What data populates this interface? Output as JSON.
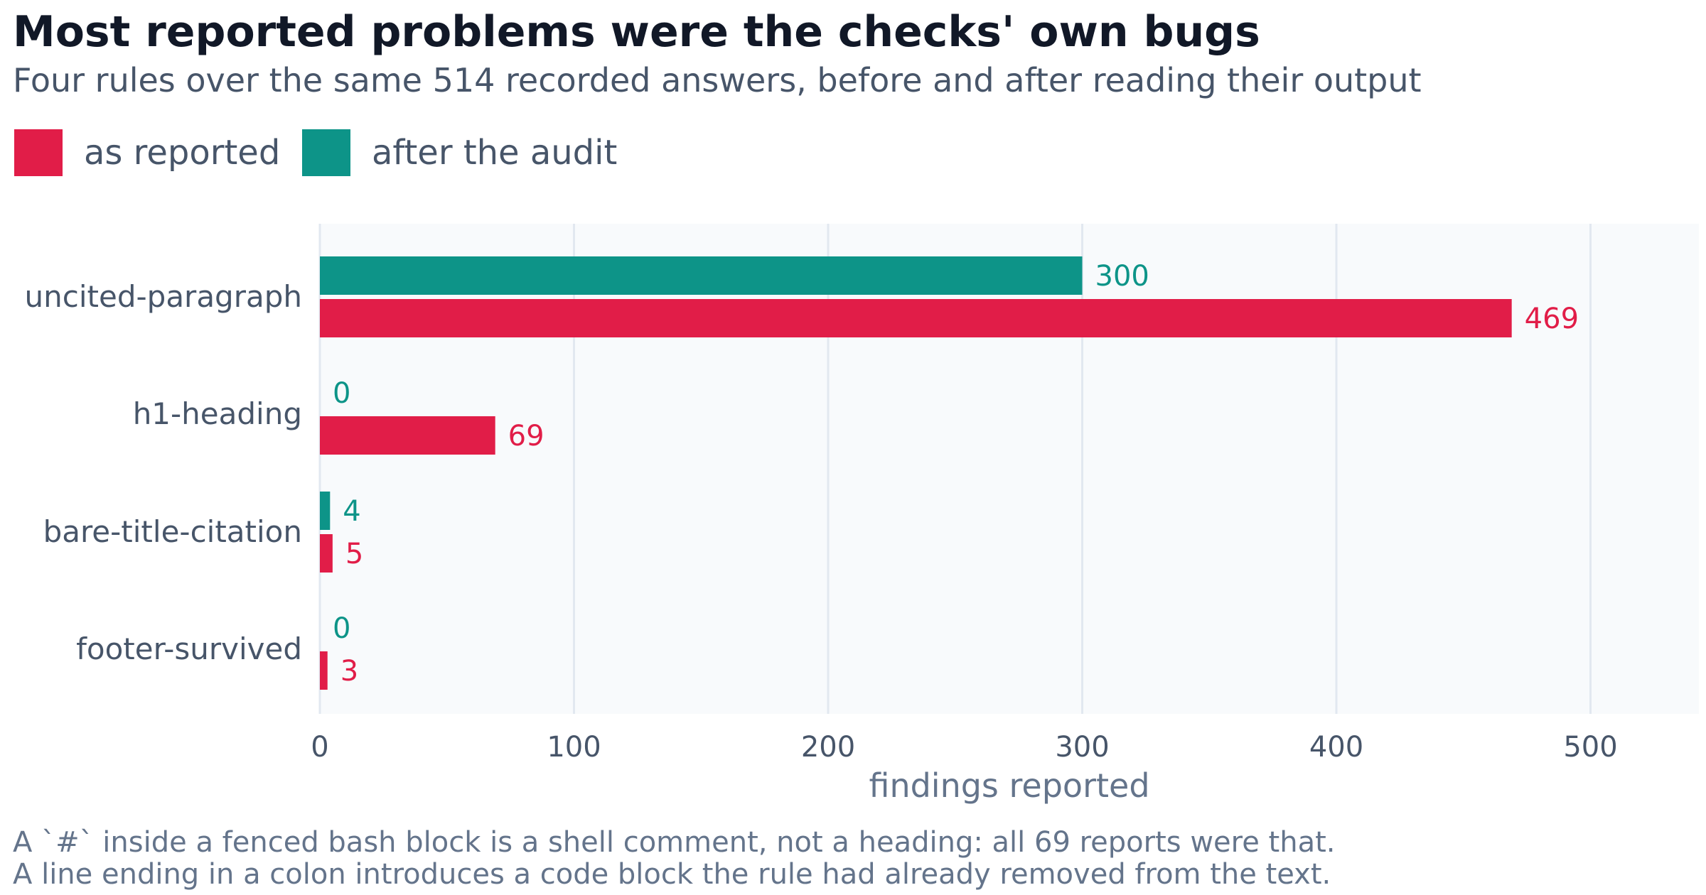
{
  "title": "Most reported problems were the checks' own bugs",
  "subtitle": "Four rules over the same 514 recorded answers, before and after reading their output",
  "footnotes": [
    "A `#` inside a fenced bash block is a shell comment, not a heading: all 69 reports were that.",
    "A line ending in a colon introduces a code block the rule had already removed from the text."
  ],
  "chart_data": {
    "type": "bar",
    "orientation": "horizontal",
    "categories": [
      "uncited-paragraph",
      "h1-heading",
      "bare-title-citation",
      "footer-survived"
    ],
    "series": [
      {
        "name": "after the audit",
        "values": [
          300,
          0,
          4,
          0
        ],
        "color": "#0d9488"
      },
      {
        "name": "as reported",
        "values": [
          469,
          69,
          5,
          3
        ],
        "color": "#e11d48"
      }
    ],
    "xlabel": "findings reported",
    "ylabel": "",
    "xlim": [
      0,
      543
    ],
    "xticks": [
      0,
      100,
      200,
      300,
      400,
      500
    ],
    "grid": true,
    "legend": "top-left"
  }
}
